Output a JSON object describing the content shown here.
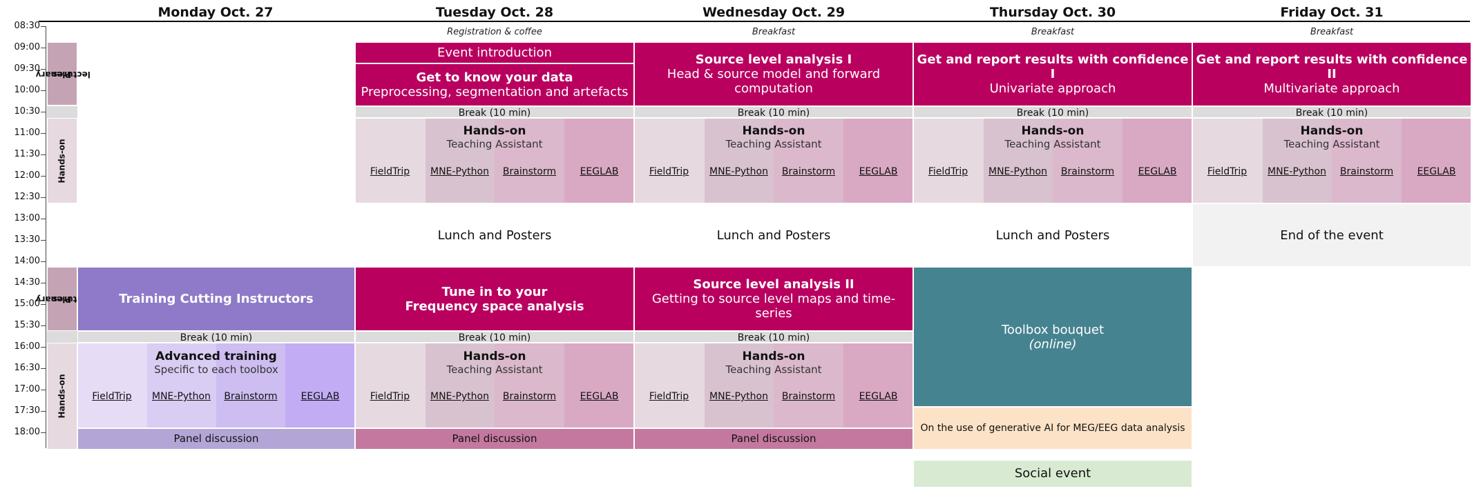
{
  "days": [
    "Monday Oct. 27",
    "Tuesday Oct. 28",
    "Wednesday Oct. 29",
    "Thursday Oct. 30",
    "Friday Oct. 31"
  ],
  "pre": {
    "tuesday": "Registration & coffee",
    "wednesday": "Breakfast",
    "thursday": "Breakfast",
    "friday": "Breakfast"
  },
  "times": [
    "08:30",
    "09:00",
    "09:30",
    "10:00",
    "10:30",
    "11:00",
    "11:30",
    "12:00",
    "12:30",
    "13:00",
    "13:30",
    "14:00",
    "14:30",
    "15:00",
    "15:30",
    "16:00",
    "16:30",
    "17:00",
    "17:30",
    "18:00"
  ],
  "labels": {
    "plenary_line1": "Plenary",
    "plenary_line2": "lectures",
    "handson": "Hands-on"
  },
  "morning": {
    "tue_intro": "Event introduction",
    "tue_title": "Get to know your data",
    "tue_sub": "Preprocessing, segmentation and artefacts",
    "wed_title": "Source level analysis I",
    "wed_sub": "Head & source model and forward computation",
    "thu_title": "Get and report results with confidence I",
    "thu_sub": "Univariate approach",
    "fri_title": "Get and report results with confidence II",
    "fri_sub": "Multivariate approach"
  },
  "break_label": "Break (10 min)",
  "handson_block": {
    "title": "Hands-on",
    "subtitle": "Teaching Assistant",
    "tools": [
      "FieldTrip",
      "MNE-Python",
      "Brainstorm",
      "EEGLAB"
    ]
  },
  "lunch": {
    "tue": "Lunch and Posters",
    "wed": "Lunch and Posters",
    "thu": "Lunch and Posters",
    "fri": "End of the event"
  },
  "afternoon": {
    "mon_title": "Training Cutting Instructors",
    "tue_title1": "Tune in to your",
    "tue_title2": "Frequency space analysis",
    "wed_title": "Source level analysis II",
    "wed_sub": "Getting to source level maps and time-series",
    "thu_title": "Toolbox bouquet",
    "thu_sub": "(online)"
  },
  "mon_advanced": {
    "title": "Advanced training",
    "subtitle": "Specific to each toolbox"
  },
  "panel_label": "Panel discussion",
  "thu_ai": "On the use of generative AI for MEG/EEG data analysis",
  "social": "Social event",
  "colors": {
    "magenta": "#b9005f",
    "purple": "#8e7ac8",
    "teal": "#468390",
    "pink_light": "#e6d9e0",
    "pink_mid": "#d9c2cf",
    "pink_2": "#dbb8cb",
    "pink_3": "#d9a9c4",
    "lav_1": "#e6dcf5",
    "lav_2": "#d9cdf3",
    "lav_3": "#cdbdf1",
    "lav_4": "#c2acf4",
    "panel_pink": "#c4789f",
    "panel_lav": "#b3a6d7",
    "ai_peach": "#fce2c6",
    "social_green": "#d8ebd2",
    "end_grey": "#f2f2f2"
  }
}
